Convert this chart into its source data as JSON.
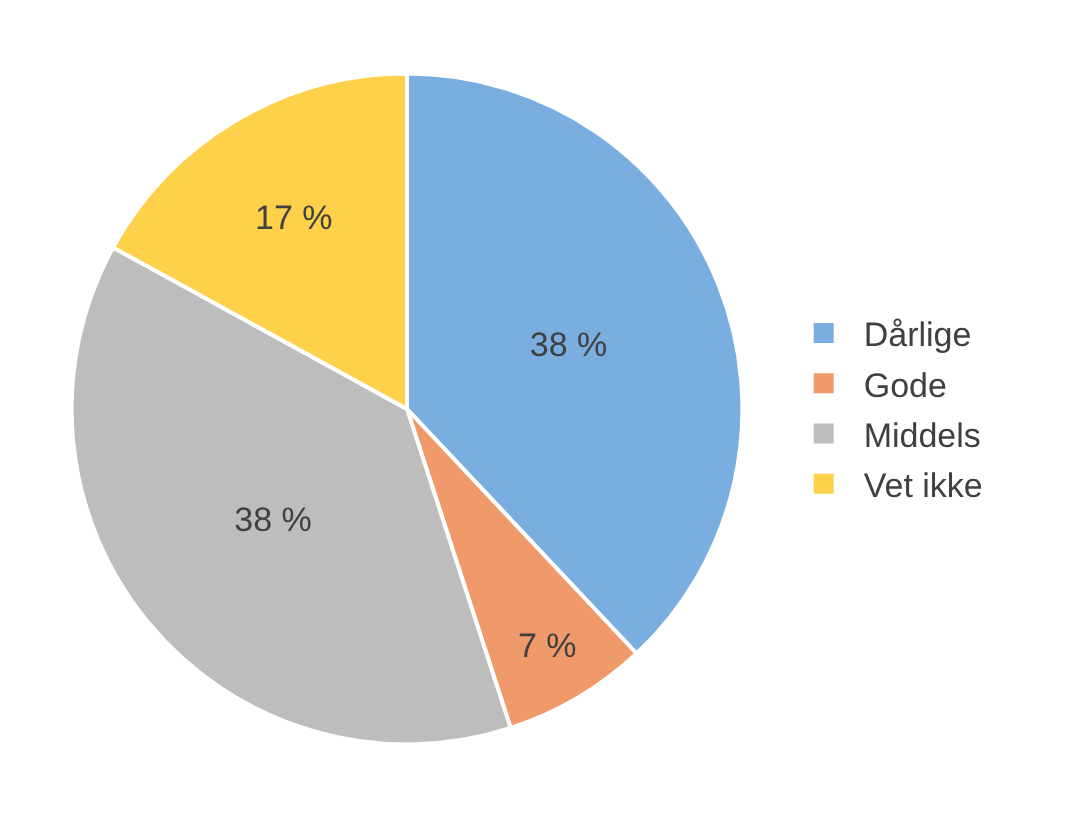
{
  "chart_data": {
    "type": "pie",
    "categories": [
      "Dårlige",
      "Gode",
      "Middels",
      "Vet ikke"
    ],
    "values": [
      38,
      7,
      38,
      17
    ],
    "colors": [
      "#7aaee0",
      "#f0996a",
      "#bdbdbd",
      "#ffd04a"
    ],
    "value_labels": [
      "38 %",
      "7 %",
      "38 %",
      "17 %"
    ],
    "legend": "right"
  }
}
